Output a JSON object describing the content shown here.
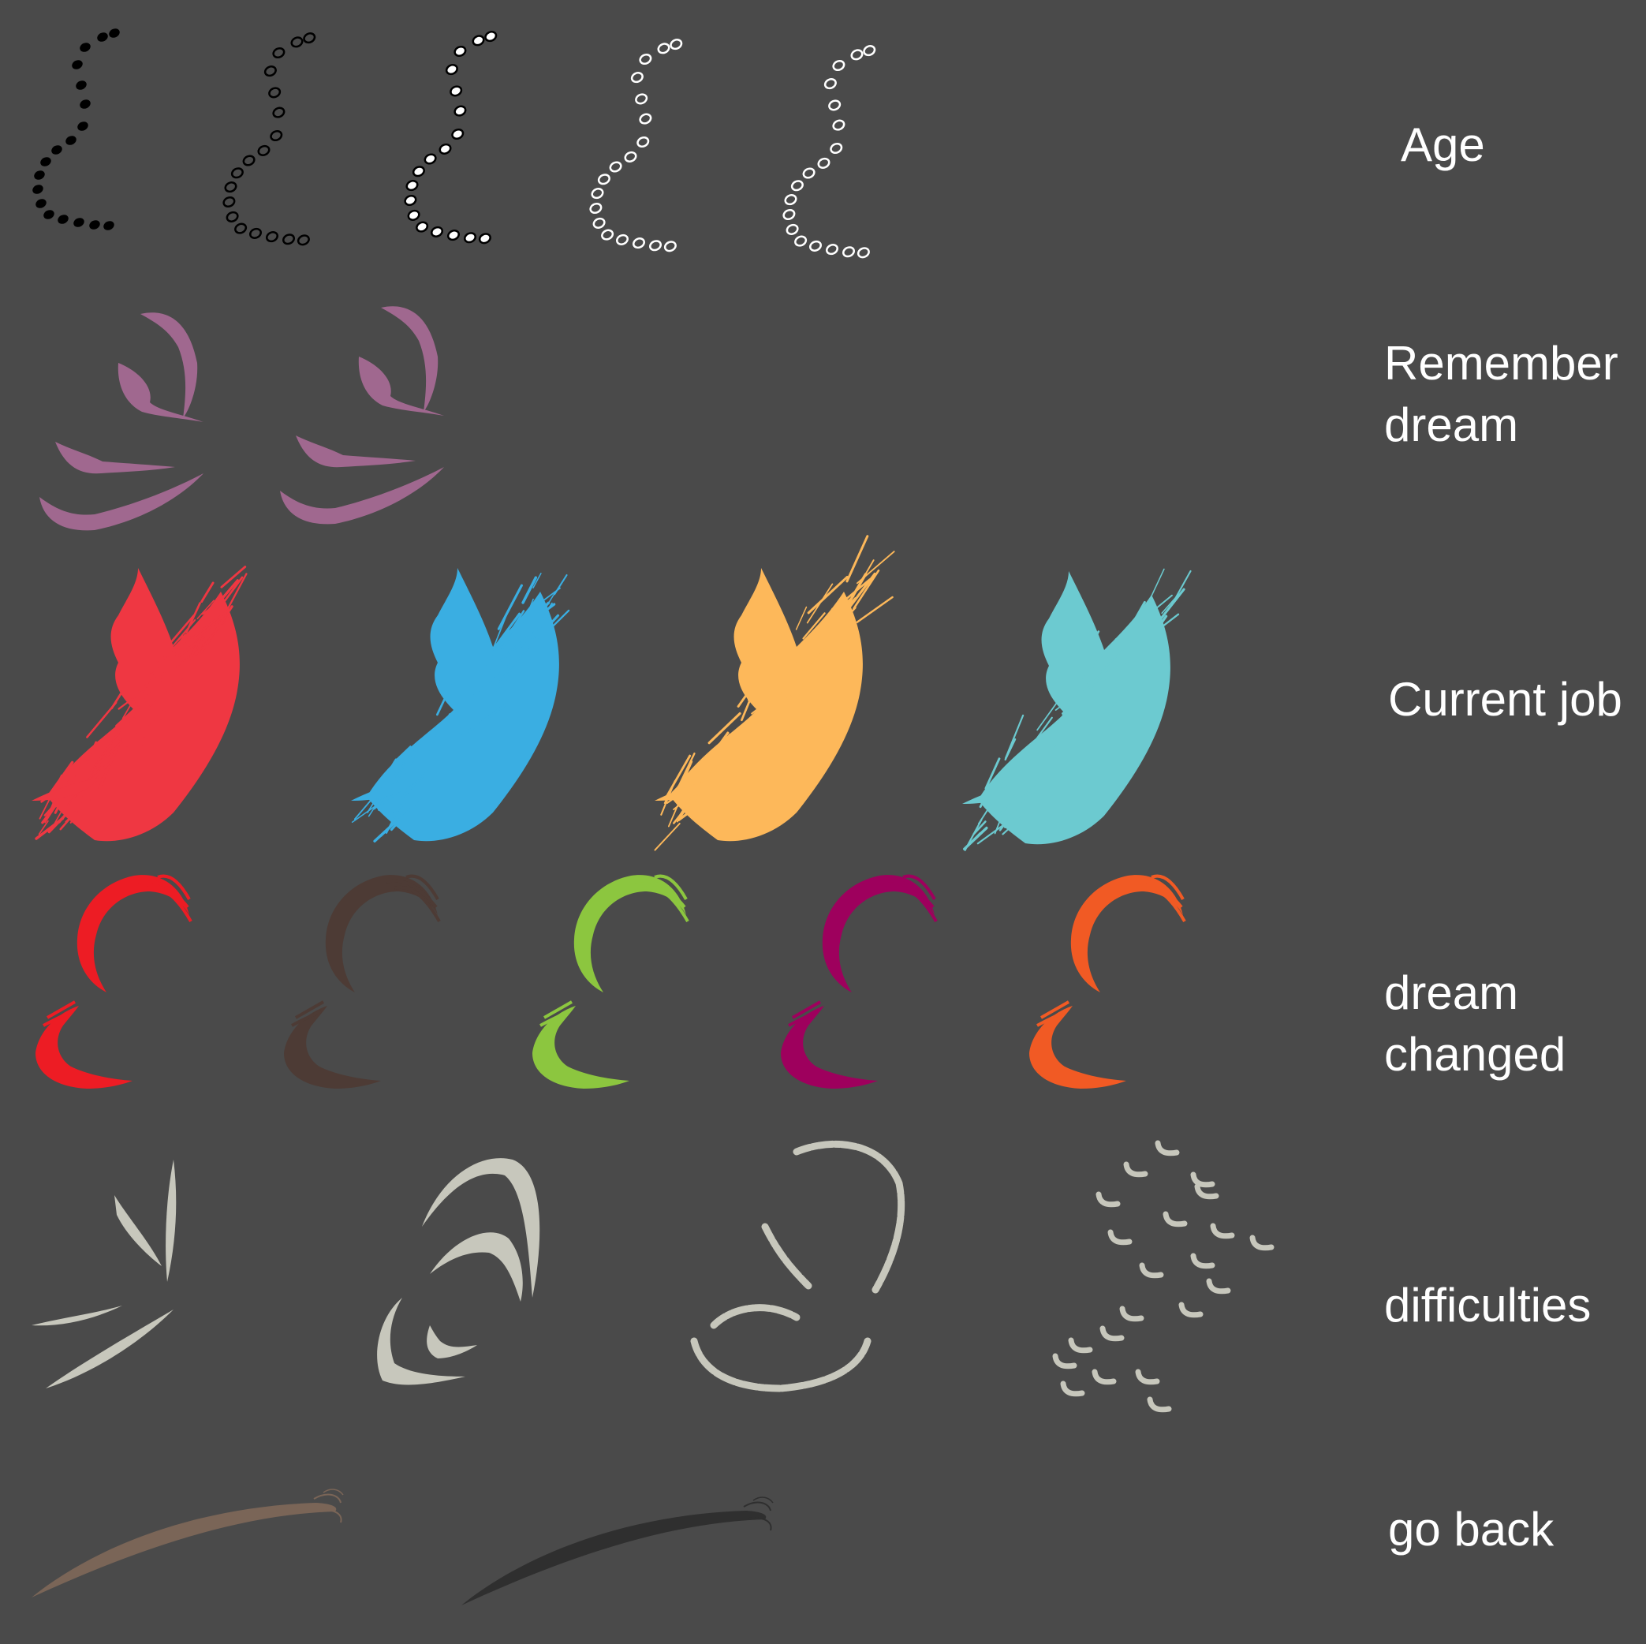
{
  "background_color": "#4a4a4a",
  "rows": [
    {
      "id": "age",
      "label_lines": [
        "Age"
      ],
      "glyph": "dotted-s-curve",
      "variants": [
        {
          "fill": "#000000",
          "stroke": "none"
        },
        {
          "fill": "none",
          "stroke": "#000000"
        },
        {
          "fill": "#ffffff",
          "stroke": "#000000"
        },
        {
          "fill": "none",
          "stroke": "#ffffff"
        },
        {
          "fill": "none",
          "stroke": "#ffffff"
        }
      ]
    },
    {
      "id": "remember-dream",
      "label_lines": [
        "Remember",
        "dream"
      ],
      "glyph": "feather-strokes",
      "variants": [
        {
          "fill": "#a0688f"
        },
        {
          "fill": "#a0688f"
        }
      ]
    },
    {
      "id": "current-job",
      "label_lines": [
        "Current job"
      ],
      "glyph": "bristle-burst",
      "variants": [
        {
          "fill": "#ef3742"
        },
        {
          "fill": "#3aaee2"
        },
        {
          "fill": "#fdb85a"
        },
        {
          "fill": "#6ccad0"
        }
      ]
    },
    {
      "id": "dream-changed",
      "label_lines": [
        "dream",
        "changed"
      ],
      "glyph": "double-brush-c",
      "variants": [
        {
          "fill": "#ed1c24"
        },
        {
          "fill": "#4d3b35"
        },
        {
          "fill": "#8cc63f"
        },
        {
          "fill": "#9e005d"
        },
        {
          "fill": "#f15a24"
        }
      ]
    },
    {
      "id": "difficulties",
      "label_lines": [
        "difficulties"
      ],
      "glyph": "chalk-marks",
      "variants": [
        {
          "fill": "#c7c7bc",
          "style": "spikes"
        },
        {
          "fill": "#c7c7bc",
          "style": "arcs"
        },
        {
          "fill": "#c7c7bc",
          "style": "rough-circle"
        },
        {
          "fill": "#c7c7bc",
          "style": "scatter-dots"
        }
      ]
    },
    {
      "id": "go-back",
      "label_lines": [
        "go back"
      ],
      "glyph": "long-sweep",
      "variants": [
        {
          "fill": "#7a6557"
        },
        {
          "fill": "#2f2f2f"
        }
      ]
    }
  ]
}
